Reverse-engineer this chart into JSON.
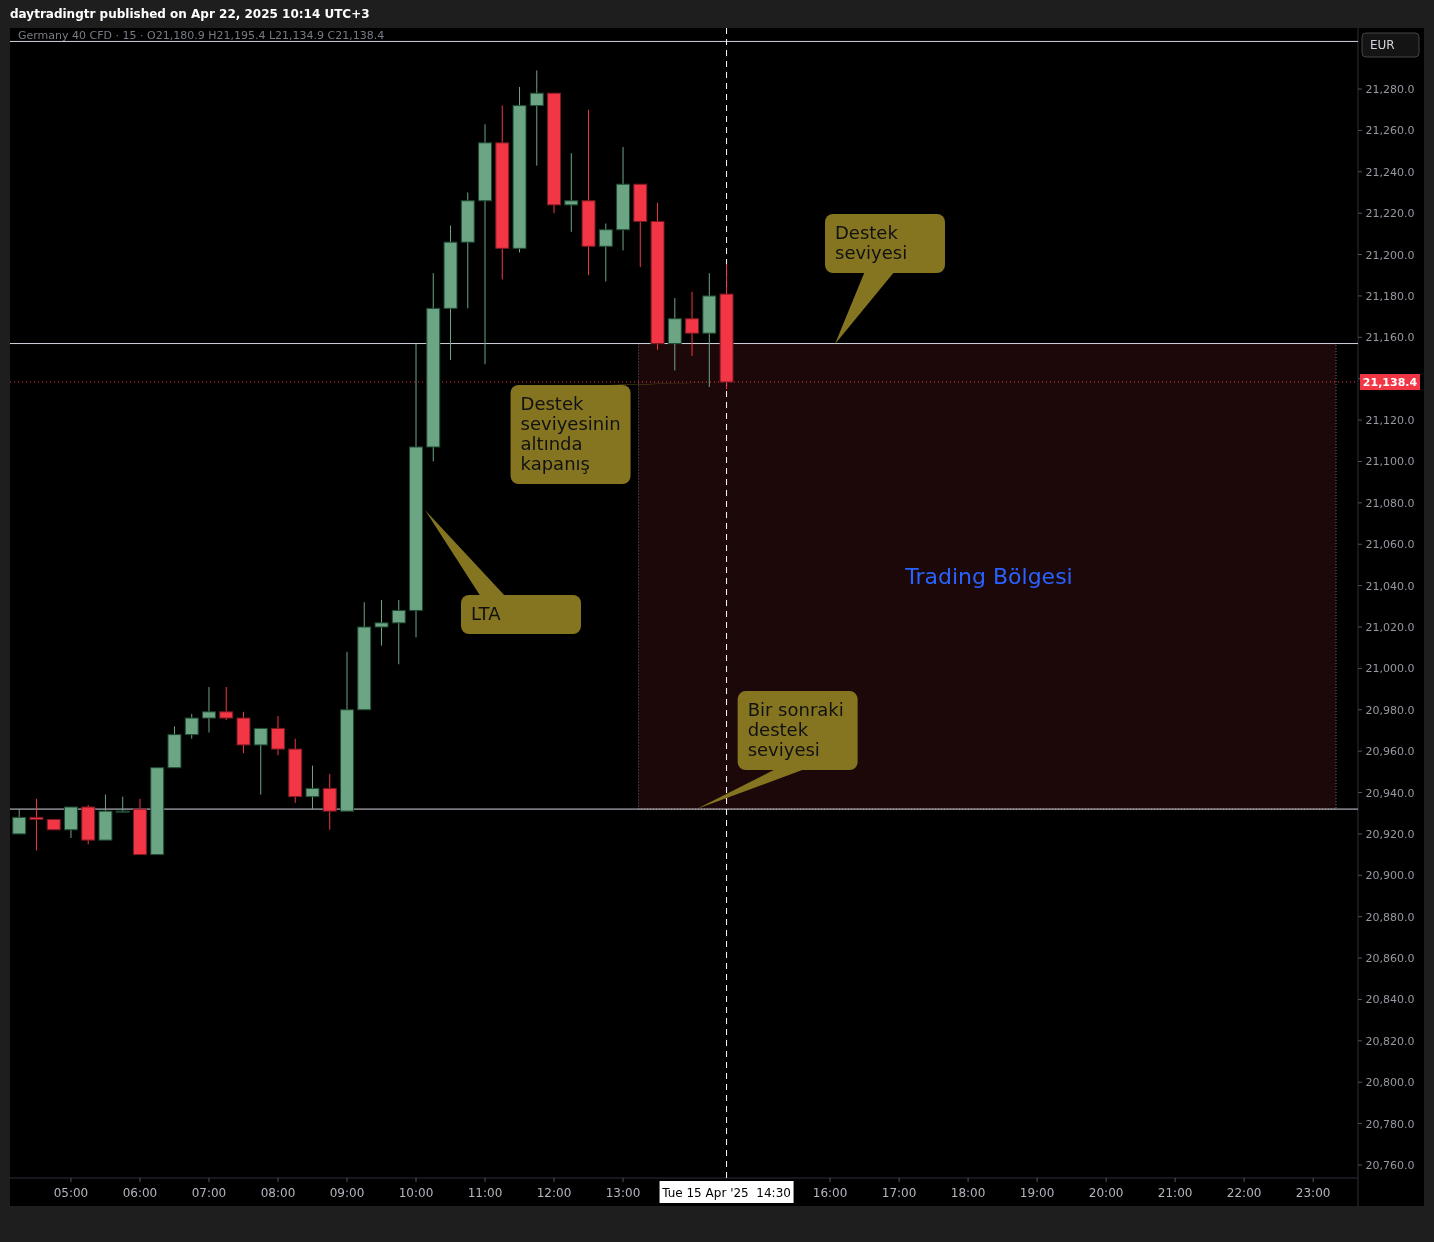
{
  "chart_data": {
    "type": "candlestick",
    "title": "daytradingtr published on Apr 22, 2025 10:14 UTC+3",
    "subtitle": "Germany 40 CFD · 15 · O21,180.9 H21,195.4 L21,134.9 C21,138.4",
    "x": [
      "2025-04-15T04:15",
      "2025-04-15T04:30",
      "2025-04-15T04:45",
      "2025-04-15T05:00",
      "2025-04-15T05:15",
      "2025-04-15T05:30",
      "2025-04-15T05:45",
      "2025-04-15T06:00",
      "2025-04-15T06:15",
      "2025-04-15T06:30",
      "2025-04-15T06:45",
      "2025-04-15T07:00",
      "2025-04-15T07:15",
      "2025-04-15T07:30",
      "2025-04-15T07:45",
      "2025-04-15T08:00",
      "2025-04-15T08:15",
      "2025-04-15T08:30",
      "2025-04-15T08:45",
      "2025-04-15T09:00",
      "2025-04-15T09:15",
      "2025-04-15T09:30",
      "2025-04-15T09:45",
      "2025-04-15T10:00",
      "2025-04-15T10:15",
      "2025-04-15T10:30",
      "2025-04-15T10:45",
      "2025-04-15T11:00",
      "2025-04-15T11:15",
      "2025-04-15T11:30",
      "2025-04-15T11:45",
      "2025-04-15T12:00",
      "2025-04-15T12:15",
      "2025-04-15T12:30",
      "2025-04-15T12:45",
      "2025-04-15T13:00",
      "2025-04-15T13:15",
      "2025-04-15T13:30",
      "2025-04-15T13:45",
      "2025-04-15T14:00",
      "2025-04-15T14:15",
      "2025-04-15T14:30"
    ],
    "ohlc": [
      [
        20920,
        20932,
        20920,
        20928
      ],
      [
        20928,
        20937,
        20912,
        20927
      ],
      [
        20927,
        20927,
        20922,
        20922
      ],
      [
        20922,
        20933,
        20918,
        20933
      ],
      [
        20933,
        20934,
        20915,
        20917
      ],
      [
        20917,
        20939,
        20917,
        20931
      ],
      [
        20931,
        20938,
        20931,
        20931
      ],
      [
        20932,
        20937,
        20910,
        20910
      ],
      [
        20910,
        20952,
        20910,
        20952
      ],
      [
        20952,
        20972,
        20952,
        20968
      ],
      [
        20968,
        20978,
        20966,
        20976
      ],
      [
        20976,
        20991,
        20969,
        20979
      ],
      [
        20979,
        20991,
        20975,
        20976
      ],
      [
        20976,
        20979,
        20959,
        20963
      ],
      [
        20963,
        20971,
        20939,
        20971
      ],
      [
        20971,
        20977,
        20958,
        20961
      ],
      [
        20961,
        20966,
        20935,
        20938
      ],
      [
        20938,
        20953,
        20932,
        20942
      ],
      [
        20942,
        20949,
        20922,
        20931
      ],
      [
        20931,
        21008,
        20931,
        20980
      ],
      [
        20980,
        21032,
        20980,
        21020
      ],
      [
        21020,
        21033,
        21011,
        21022
      ],
      [
        21022,
        21033,
        21002,
        21028
      ],
      [
        21028,
        21157,
        21015,
        21107
      ],
      [
        21107,
        21191,
        21100,
        21174
      ],
      [
        21174,
        21214,
        21149,
        21206
      ],
      [
        21206,
        21230,
        21174,
        21226
      ],
      [
        21226,
        21263,
        21147,
        21254
      ],
      [
        21254,
        21272,
        21188,
        21203
      ],
      [
        21203,
        21281,
        21201,
        21272
      ],
      [
        21272,
        21289,
        21243,
        21278
      ],
      [
        21278,
        21278,
        21220,
        21224
      ],
      [
        21224,
        21249,
        21211,
        21226
      ],
      [
        21226,
        21270,
        21190,
        21204
      ],
      [
        21204,
        21215,
        21187,
        21212
      ],
      [
        21212,
        21252,
        21202,
        21234
      ],
      [
        21234,
        21234,
        21194,
        21216
      ],
      [
        21216,
        21225,
        21154,
        21157
      ],
      [
        21157,
        21179,
        21144,
        21169
      ],
      [
        21169,
        21182,
        21151,
        21162
      ],
      [
        21162,
        21191,
        21136,
        21180
      ],
      [
        21180.9,
        21195.4,
        21134.9,
        21138.4
      ]
    ],
    "xlim": [
      "2025-04-15T04:07",
      "2025-04-15T23:39"
    ],
    "xticks": [
      {
        "value": "2025-04-15T05:00",
        "label": "05:00"
      },
      {
        "value": "2025-04-15T06:00",
        "label": "06:00"
      },
      {
        "value": "2025-04-15T07:00",
        "label": "07:00"
      },
      {
        "value": "2025-04-15T08:00",
        "label": "08:00"
      },
      {
        "value": "2025-04-15T09:00",
        "label": "09:00"
      },
      {
        "value": "2025-04-15T10:00",
        "label": "10:00"
      },
      {
        "value": "2025-04-15T11:00",
        "label": "11:00"
      },
      {
        "value": "2025-04-15T12:00",
        "label": "12:00"
      },
      {
        "value": "2025-04-15T13:00",
        "label": "13:00"
      },
      {
        "value": "2025-04-15T16:00",
        "label": "16:00"
      },
      {
        "value": "2025-04-15T17:00",
        "label": "17:00"
      },
      {
        "value": "2025-04-15T18:00",
        "label": "18:00"
      },
      {
        "value": "2025-04-15T19:00",
        "label": "19:00"
      },
      {
        "value": "2025-04-15T20:00",
        "label": "20:00"
      },
      {
        "value": "2025-04-15T21:00",
        "label": "21:00"
      },
      {
        "value": "2025-04-15T22:00",
        "label": "22:00"
      },
      {
        "value": "2025-04-15T23:00",
        "label": "23:00"
      }
    ],
    "ylim": [
      20753.7,
      21309.5
    ],
    "yticks": [
      {
        "value": 20760,
        "label": "20,760.0"
      },
      {
        "value": 20780,
        "label": "20,780.0"
      },
      {
        "value": 20800,
        "label": "20,800.0"
      },
      {
        "value": 20820,
        "label": "20,820.0"
      },
      {
        "value": 20840,
        "label": "20,840.0"
      },
      {
        "value": 20860,
        "label": "20,860.0"
      },
      {
        "value": 20880,
        "label": "20,880.0"
      },
      {
        "value": 20900,
        "label": "20,900.0"
      },
      {
        "value": 20920,
        "label": "20,920.0"
      },
      {
        "value": 20940,
        "label": "20,940.0"
      },
      {
        "value": 20960,
        "label": "20,960.0"
      },
      {
        "value": 20980,
        "label": "20,980.0"
      },
      {
        "value": 21000,
        "label": "21,000.0"
      },
      {
        "value": 21020,
        "label": "21,020.0"
      },
      {
        "value": 21040,
        "label": "21,040.0"
      },
      {
        "value": 21060,
        "label": "21,060.0"
      },
      {
        "value": 21080,
        "label": "21,080.0"
      },
      {
        "value": 21100,
        "label": "21,100.0"
      },
      {
        "value": 21120,
        "label": "21,120.0"
      },
      {
        "value": 21140,
        "label": null
      },
      {
        "value": 21160,
        "label": "21,160.0"
      },
      {
        "value": 21180,
        "label": "21,180.0"
      },
      {
        "value": 21200,
        "label": "21,200.0"
      },
      {
        "value": 21220,
        "label": "21,220.0"
      },
      {
        "value": 21240,
        "label": "21,240.0"
      },
      {
        "value": 21260,
        "label": "21,260.0"
      },
      {
        "value": 21280,
        "label": "21,280.0"
      }
    ],
    "ref_lines": [
      {
        "axis": "y",
        "value": 21303,
        "color": "#d1d4dc"
      },
      {
        "axis": "y",
        "value": 21157,
        "color": "#d1d4dc"
      },
      {
        "axis": "y",
        "value": 20932,
        "color": "#d1d4dc"
      },
      {
        "axis": "y",
        "value": 21138.4,
        "label": "21,138.4",
        "color": "#f23645",
        "line_style": "dotted"
      },
      {
        "axis": "x",
        "value": "2025-04-15T14:30",
        "label": "Tue 15 Apr '25  14:30",
        "color": "#ffffff",
        "line_style": "dashed"
      }
    ],
    "bands": [
      {
        "axis": "y",
        "from": 20932,
        "to": 21157,
        "label": "Trading Bölgesi",
        "color": "#1c0809"
      }
    ],
    "annotations": [
      "Destek seviyesi",
      {
        "text": "Destek seviyesinin altında kapanış",
        "x": "2025-04-15T14:30",
        "y": 21138.4
      },
      "LTA",
      {
        "text": "Bir sonraki destek seviyesi",
        "x": "2025-04-15T14:04",
        "y": 20932
      },
      "EUR"
    ]
  }
}
